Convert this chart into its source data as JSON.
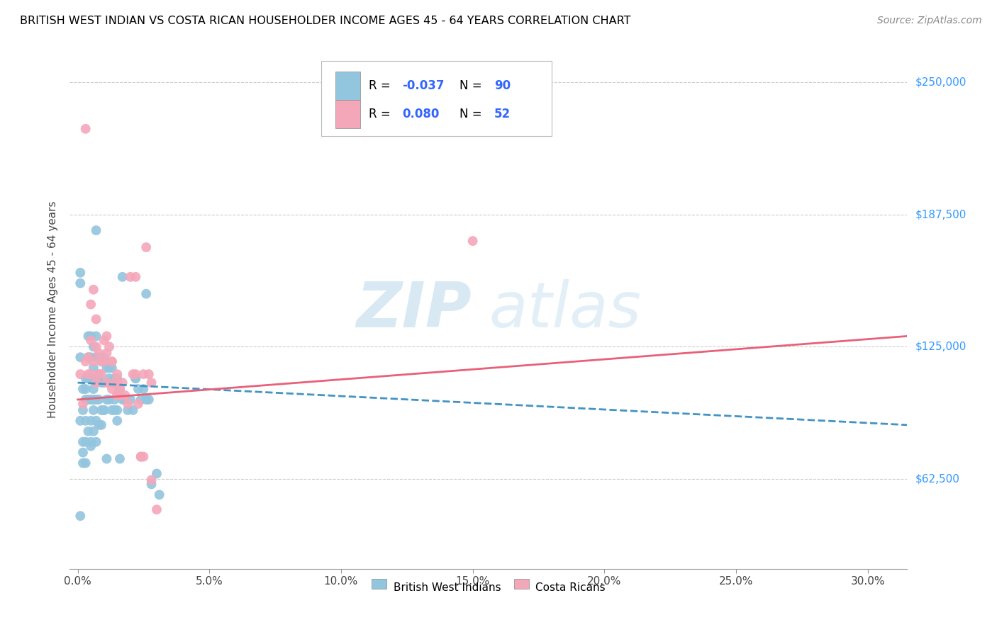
{
  "title": "BRITISH WEST INDIAN VS COSTA RICAN HOUSEHOLDER INCOME AGES 45 - 64 YEARS CORRELATION CHART",
  "source": "Source: ZipAtlas.com",
  "ylabel": "Householder Income Ages 45 - 64 years",
  "xlabel_ticks": [
    "0.0%",
    "5.0%",
    "10.0%",
    "15.0%",
    "20.0%",
    "25.0%",
    "30.0%"
  ],
  "xlabel_vals": [
    0.0,
    0.05,
    0.1,
    0.15,
    0.2,
    0.25,
    0.3
  ],
  "ytick_labels": [
    "$62,500",
    "$125,000",
    "$187,500",
    "$250,000"
  ],
  "ytick_vals": [
    62500,
    125000,
    187500,
    250000
  ],
  "xlim": [
    -0.003,
    0.315
  ],
  "ylim": [
    20000,
    265000
  ],
  "watermark_zip": "ZIP",
  "watermark_atlas": "atlas",
  "blue_color": "#92c5de",
  "pink_color": "#f4a7b9",
  "blue_line_color": "#4393c3",
  "pink_line_color": "#e8607a",
  "legend_r_blue": "-0.037",
  "legend_n_blue": "90",
  "legend_r_pink": "0.080",
  "legend_n_pink": "52",
  "legend_label_blue": "British West Indians",
  "legend_label_pink": "Costa Ricans",
  "blue_scatter_x": [
    0.001,
    0.001,
    0.001,
    0.002,
    0.002,
    0.002,
    0.002,
    0.003,
    0.003,
    0.003,
    0.003,
    0.003,
    0.004,
    0.004,
    0.004,
    0.004,
    0.004,
    0.005,
    0.005,
    0.005,
    0.005,
    0.005,
    0.005,
    0.006,
    0.006,
    0.006,
    0.006,
    0.006,
    0.007,
    0.007,
    0.007,
    0.007,
    0.007,
    0.007,
    0.008,
    0.008,
    0.008,
    0.008,
    0.009,
    0.009,
    0.009,
    0.01,
    0.01,
    0.01,
    0.011,
    0.011,
    0.012,
    0.012,
    0.013,
    0.013,
    0.013,
    0.014,
    0.014,
    0.015,
    0.015,
    0.016,
    0.017,
    0.018,
    0.019,
    0.02,
    0.021,
    0.022,
    0.023,
    0.024,
    0.025,
    0.026,
    0.027,
    0.028,
    0.03,
    0.031,
    0.001,
    0.002,
    0.003,
    0.004,
    0.005,
    0.006,
    0.007,
    0.008,
    0.009,
    0.01,
    0.011,
    0.012,
    0.013,
    0.014,
    0.015,
    0.016,
    0.017,
    0.022,
    0.026,
    0.001
  ],
  "blue_scatter_y": [
    155000,
    120000,
    90000,
    105000,
    95000,
    80000,
    70000,
    110000,
    100000,
    90000,
    80000,
    70000,
    130000,
    120000,
    110000,
    100000,
    85000,
    130000,
    120000,
    110000,
    100000,
    90000,
    80000,
    125000,
    115000,
    105000,
    95000,
    85000,
    130000,
    120000,
    110000,
    100000,
    90000,
    80000,
    120000,
    112000,
    100000,
    88000,
    118000,
    108000,
    95000,
    120000,
    108000,
    95000,
    115000,
    100000,
    115000,
    100000,
    115000,
    108000,
    95000,
    110000,
    95000,
    110000,
    95000,
    105000,
    100000,
    100000,
    95000,
    100000,
    95000,
    110000,
    105000,
    100000,
    105000,
    100000,
    100000,
    60000,
    65000,
    55000,
    160000,
    75000,
    105000,
    110000,
    78000,
    100000,
    180000,
    110000,
    88000,
    95000,
    72000,
    110000,
    108000,
    100000,
    90000,
    72000,
    158000,
    110000,
    150000,
    45000
  ],
  "pink_scatter_x": [
    0.001,
    0.002,
    0.003,
    0.004,
    0.004,
    0.005,
    0.005,
    0.006,
    0.006,
    0.007,
    0.007,
    0.008,
    0.008,
    0.009,
    0.01,
    0.01,
    0.011,
    0.011,
    0.012,
    0.013,
    0.013,
    0.014,
    0.015,
    0.015,
    0.016,
    0.017,
    0.018,
    0.019,
    0.02,
    0.021,
    0.022,
    0.023,
    0.024,
    0.025,
    0.026,
    0.027,
    0.028,
    0.003,
    0.005,
    0.007,
    0.009,
    0.011,
    0.013,
    0.015,
    0.022,
    0.025,
    0.015,
    0.024,
    0.016,
    0.028,
    0.15,
    0.03
  ],
  "pink_scatter_y": [
    112000,
    98000,
    228000,
    120000,
    112000,
    145000,
    128000,
    152000,
    118000,
    138000,
    125000,
    122000,
    112000,
    118000,
    128000,
    118000,
    130000,
    122000,
    125000,
    118000,
    118000,
    108000,
    112000,
    102000,
    105000,
    108000,
    102000,
    98000,
    158000,
    112000,
    112000,
    98000,
    73000,
    73000,
    172000,
    112000,
    108000,
    118000,
    112000,
    108000,
    112000,
    108000,
    105000,
    102000,
    158000,
    112000,
    108000,
    73000,
    102000,
    62000,
    175000,
    48000
  ],
  "blue_trendline_x": [
    0.0,
    0.315
  ],
  "blue_trendline_y": [
    108000,
    88000
  ],
  "pink_trendline_x": [
    0.0,
    0.315
  ],
  "pink_trendline_y": [
    100000,
    130000
  ]
}
